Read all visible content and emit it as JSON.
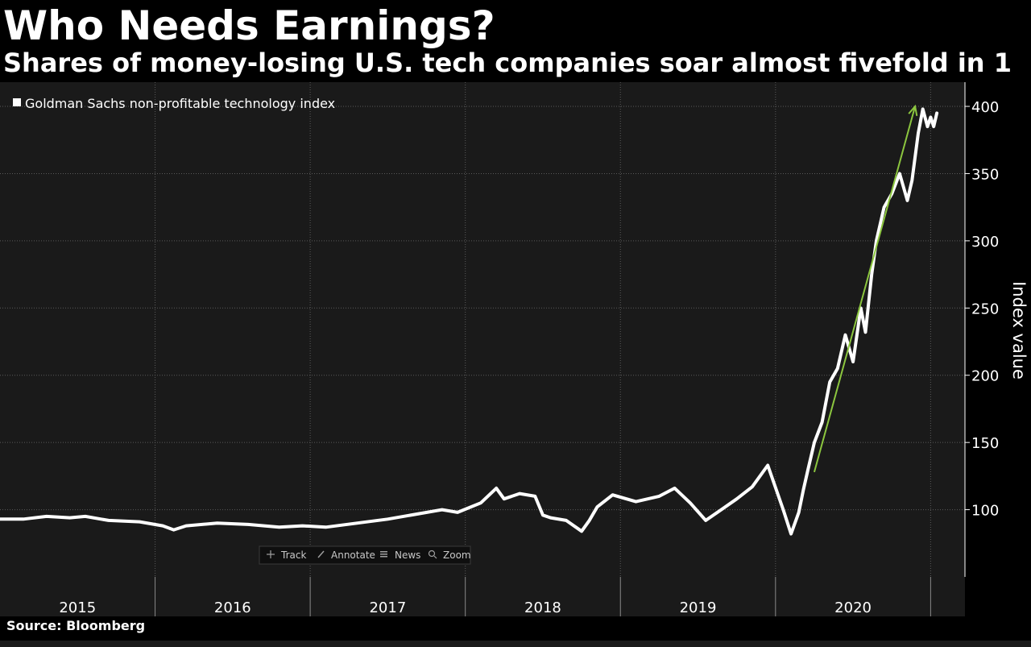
{
  "colors": {
    "background": "#000000",
    "plot_background": "#1a1a1a",
    "line": "#ffffff",
    "grid": "#5a5a5a",
    "arrow": "#8cc63f",
    "text": "#ffffff",
    "toolbar_text": "#c8c8c8"
  },
  "toolbar": [
    {
      "icon": "crosshair-icon",
      "label": "Track"
    },
    {
      "icon": "pencil-icon",
      "label": "Annotate"
    },
    {
      "icon": "news-icon",
      "label": "News"
    },
    {
      "icon": "magnifier-icon",
      "label": "Zoom"
    }
  ],
  "source": "Source: Bloomberg",
  "chart_data": {
    "type": "line",
    "title": "Who Needs Earnings?",
    "subtitle": "Shares of money-losing U.S. tech companies soar almost fivefold in 1",
    "ylabel": "Index value",
    "ylim": [
      50,
      418
    ],
    "y_ticks": [
      100,
      150,
      200,
      250,
      300,
      350,
      400
    ],
    "x_range": [
      2015.0,
      2021.05
    ],
    "x_ticks": [
      "2015",
      "2016",
      "2017",
      "2018",
      "2019",
      "2020"
    ],
    "grid": true,
    "legend": {
      "position": "top-left",
      "entries": [
        "Goldman Sachs non-profitable technology index"
      ]
    },
    "series": [
      {
        "name": "Goldman Sachs non-profitable technology index",
        "x": [
          2015.0,
          2015.15,
          2015.3,
          2015.45,
          2015.55,
          2015.7,
          2015.9,
          2016.05,
          2016.12,
          2016.2,
          2016.4,
          2016.6,
          2016.8,
          2016.95,
          2017.1,
          2017.3,
          2017.5,
          2017.7,
          2017.85,
          2017.95,
          2018.1,
          2018.2,
          2018.25,
          2018.35,
          2018.45,
          2018.5,
          2018.55,
          2018.65,
          2018.75,
          2018.8,
          2018.85,
          2018.95,
          2019.1,
          2019.25,
          2019.35,
          2019.45,
          2019.55,
          2019.65,
          2019.75,
          2019.85,
          2019.95,
          2020.05,
          2020.1,
          2020.15,
          2020.18,
          2020.21,
          2020.25,
          2020.3,
          2020.35,
          2020.4,
          2020.45,
          2020.5,
          2020.55,
          2020.58,
          2020.62,
          2020.65,
          2020.7,
          2020.75,
          2020.8,
          2020.85,
          2020.88,
          2020.92,
          2020.95,
          2020.98,
          2021.0,
          2021.02,
          2021.04
        ],
        "values": [
          93,
          93,
          95,
          94,
          95,
          92,
          91,
          88,
          85,
          88,
          90,
          89,
          87,
          88,
          87,
          90,
          93,
          97,
          100,
          98,
          105,
          116,
          108,
          112,
          110,
          96,
          94,
          92,
          84,
          92,
          102,
          111,
          106,
          110,
          116,
          105,
          92,
          100,
          108,
          117,
          133,
          100,
          82,
          98,
          115,
          130,
          150,
          165,
          195,
          205,
          230,
          210,
          250,
          232,
          275,
          300,
          325,
          335,
          350,
          330,
          345,
          380,
          398,
          385,
          392,
          385,
          395
        ]
      }
    ],
    "annotation": {
      "type": "arrow",
      "from": {
        "x": 2020.25,
        "y": 128
      },
      "to": {
        "x": 2020.9,
        "y": 400
      }
    }
  }
}
